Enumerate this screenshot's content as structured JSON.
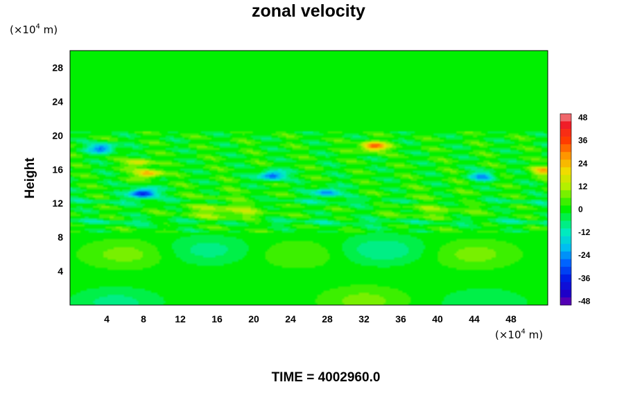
{
  "chart_data": {
    "type": "heatmap",
    "title": "zonal velocity",
    "xlabel": "",
    "ylabel": "Height",
    "x_units_prefix": "(×10",
    "x_units_exp": "4",
    "x_units_suffix": " m)",
    "y_units_prefix": "(×10",
    "y_units_exp": "4",
    "y_units_suffix": " m)",
    "xlim": [
      0,
      52
    ],
    "ylim": [
      0,
      30
    ],
    "x_ticks": [
      4,
      8,
      12,
      16,
      20,
      24,
      28,
      32,
      36,
      40,
      44,
      48
    ],
    "y_ticks": [
      4,
      8,
      12,
      16,
      20,
      24,
      28
    ],
    "colorbar": {
      "min": -50,
      "max": 50,
      "step": 4,
      "ticks": [
        48,
        36,
        24,
        12,
        0,
        -12,
        -24,
        -36,
        -48
      ]
    },
    "features": [
      {
        "x": 33,
        "y": 18.7,
        "value": 34
      },
      {
        "x": 8.5,
        "y": 15.5,
        "value": 26
      },
      {
        "x": 7.5,
        "y": 16.8,
        "value": 18
      },
      {
        "x": 51.5,
        "y": 15.8,
        "value": 22
      },
      {
        "x": 8,
        "y": 13.2,
        "value": -40
      },
      {
        "x": 3.5,
        "y": 18.5,
        "value": -30
      },
      {
        "x": 22,
        "y": 15.3,
        "value": -32
      },
      {
        "x": 28,
        "y": 13.3,
        "value": -26
      },
      {
        "x": 45,
        "y": 15.2,
        "value": -22
      },
      {
        "x": 17,
        "y": 11.2,
        "value": 10
      },
      {
        "x": 40,
        "y": 11.4,
        "value": 6
      },
      {
        "x": 6,
        "y": 6,
        "value": 8
      },
      {
        "x": 25,
        "y": 6,
        "value": 6
      },
      {
        "x": 44,
        "y": 6,
        "value": 8
      },
      {
        "x": 15,
        "y": 6.5,
        "value": -8
      },
      {
        "x": 34,
        "y": 6.5,
        "value": -10
      },
      {
        "x": 32,
        "y": 0.5,
        "value": 8
      },
      {
        "x": 5,
        "y": 0.3,
        "value": -8
      },
      {
        "x": 45,
        "y": 0.3,
        "value": -6
      }
    ]
  },
  "footer": {
    "time_label": "TIME = 4002960.0"
  }
}
